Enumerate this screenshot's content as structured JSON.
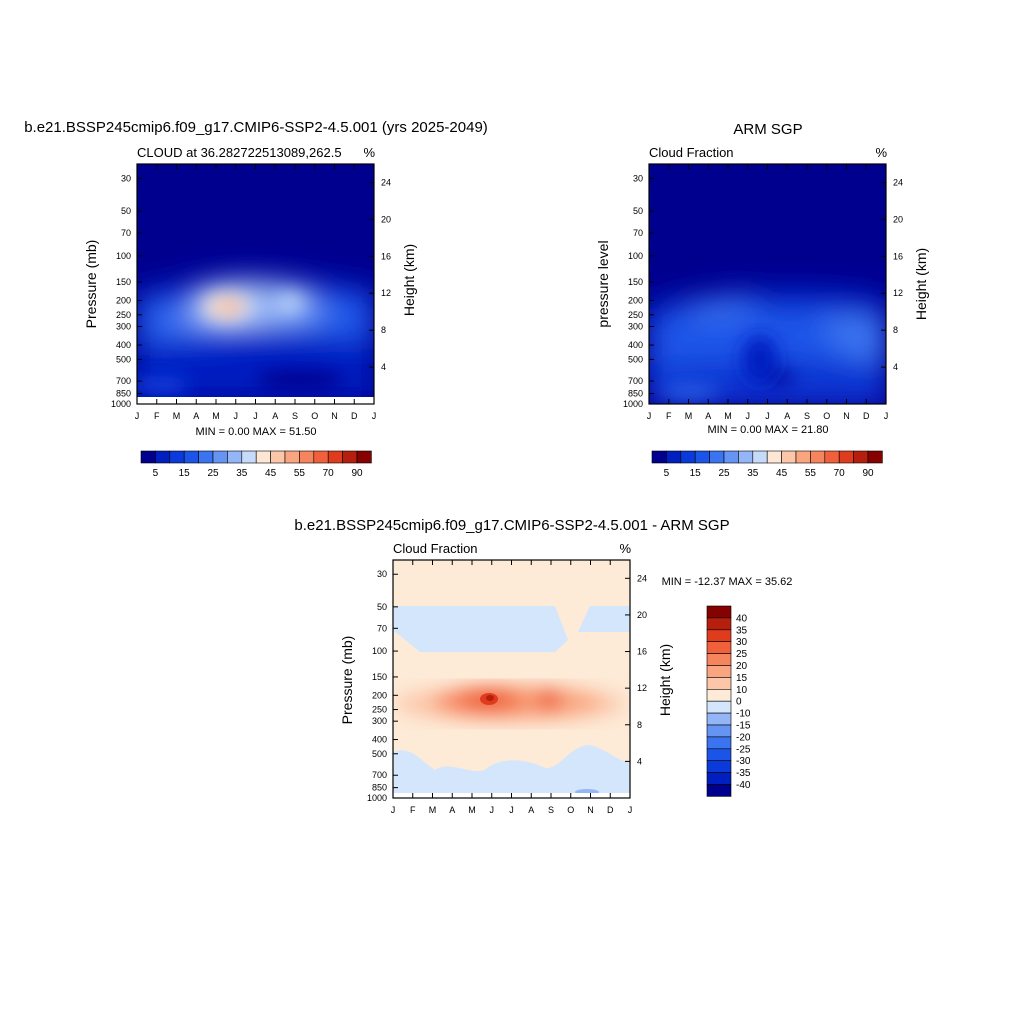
{
  "palettes": {
    "seq": [
      "#00008f",
      "#001fc1",
      "#0a3ad9",
      "#1a55e8",
      "#3a74f0",
      "#6594f3",
      "#94b6f6",
      "#c6daf9",
      "#fde6d4",
      "#fcc6a8",
      "#f9a57f",
      "#f6845c",
      "#f0603a",
      "#df3c1d",
      "#b61f0e",
      "#850200"
    ],
    "div": [
      "#00008f",
      "#001fc1",
      "#0a3ad9",
      "#1a55e8",
      "#3a74f0",
      "#6594f3",
      "#94b6f6",
      "#d3e6fb",
      "#fdead7",
      "#fcc6a8",
      "#f9a57f",
      "#f6845c",
      "#f0603a",
      "#df3c1d",
      "#b61f0e",
      "#850200"
    ]
  },
  "panels": {
    "p1": {
      "title": "b.e21.BSSP245cmip6.f09_g17.CMIP6-SSP2-4.5.001 (yrs 2025-2049)",
      "left_label": "CLOUD at 36.282722513089,262.5",
      "right_label": "%",
      "ylabel": "Pressure (mb)",
      "y2label": "Height (km)",
      "minmax": "MIN =   0.00 MAX =  51.50"
    },
    "p2": {
      "title": "ARM SGP",
      "left_label": "Cloud Fraction",
      "right_label": "%",
      "ylabel": "pressure level",
      "y2label": "Height (km)",
      "minmax": "MIN =   0.00 MAX =  21.80"
    },
    "p3": {
      "title": "b.e21.BSSP245cmip6.f09_g17.CMIP6-SSP2-4.5.001 - ARM SGP",
      "left_label": "Cloud Fraction",
      "right_label": "%",
      "ylabel": "Pressure (mb)",
      "y2label": "Height (km)",
      "minmax": "MIN = -12.37 MAX =  35.62"
    }
  },
  "chart_data": [
    {
      "type": "heatmap",
      "panel": "p1",
      "x": [
        "J",
        "F",
        "M",
        "A",
        "M",
        "J",
        "J",
        "A",
        "S",
        "O",
        "N",
        "D",
        "J"
      ],
      "y_ticks": [
        30,
        50,
        70,
        100,
        150,
        200,
        250,
        300,
        400,
        500,
        700,
        850,
        1000
      ],
      "y2_ticks": [
        24,
        20,
        16,
        12,
        8,
        4
      ],
      "colorbar_ticks": [
        "5",
        "15",
        "25",
        "35",
        "45",
        "55",
        "70",
        "90"
      ],
      "value_range": [
        0,
        51.5
      ],
      "blobs": [
        {
          "x": 0.42,
          "p": 225,
          "amp": 48,
          "sx": 0.08,
          "sy": 0.12
        },
        {
          "x": 0.66,
          "p": 220,
          "amp": 18,
          "sx": 0.12,
          "sy": 0.15
        },
        {
          "x": 0.5,
          "p": 280,
          "amp": 20,
          "sx": 0.35,
          "sy": 0.3
        }
      ]
    },
    {
      "type": "heatmap",
      "panel": "p2",
      "x": [
        "J",
        "F",
        "M",
        "A",
        "M",
        "J",
        "J",
        "A",
        "S",
        "O",
        "N",
        "D",
        "J"
      ],
      "y_ticks": [
        30,
        50,
        70,
        100,
        150,
        200,
        250,
        300,
        400,
        500,
        700,
        850,
        1000
      ],
      "y2_ticks": [
        24,
        20,
        16,
        12,
        8,
        4
      ],
      "colorbar_ticks": [
        "5",
        "15",
        "25",
        "35",
        "45",
        "55",
        "70",
        "90"
      ],
      "value_range": [
        0,
        21.8
      ],
      "blobs": [
        {
          "x": 0.5,
          "p": 330,
          "amp": 16,
          "sx": 0.6,
          "sy": 0.3
        },
        {
          "x": 0.2,
          "p": 700,
          "amp": 12,
          "sx": 0.25,
          "sy": 0.2
        },
        {
          "x": 0.85,
          "p": 600,
          "amp": 14,
          "sx": 0.25,
          "sy": 0.25
        }
      ]
    },
    {
      "type": "heatmap",
      "panel": "p3",
      "x": [
        "J",
        "F",
        "M",
        "A",
        "M",
        "J",
        "J",
        "A",
        "S",
        "O",
        "N",
        "D",
        "J"
      ],
      "y_ticks": [
        30,
        50,
        70,
        100,
        150,
        200,
        250,
        300,
        400,
        500,
        700,
        850,
        1000
      ],
      "y2_ticks": [
        24,
        20,
        16,
        12,
        8,
        4
      ],
      "colorbar_ticks": [
        "40",
        "35",
        "30",
        "25",
        "20",
        "15",
        "10",
        "0",
        "-10",
        "-15",
        "-20",
        "-25",
        "-30",
        "-35",
        "-40"
      ],
      "value_range": [
        -12.37,
        35.62
      ],
      "blobs": [
        {
          "x": 0.4,
          "p": 220,
          "amp": 36,
          "sx": 0.08,
          "sy": 0.12
        },
        {
          "x": 0.66,
          "p": 225,
          "amp": 24,
          "sx": 0.06,
          "sy": 0.1
        },
        {
          "x": 0.5,
          "p": 230,
          "amp": 12,
          "sx": 0.35,
          "sy": 0.2
        }
      ]
    }
  ]
}
